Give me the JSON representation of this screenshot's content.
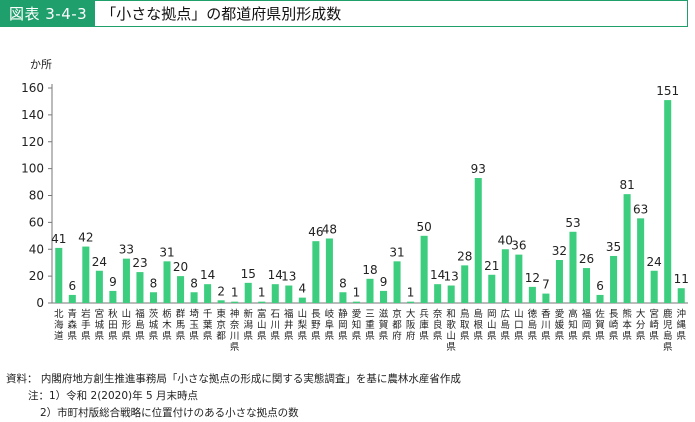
{
  "header": {
    "figure_label": "図表 3-4-3",
    "title": "「小さな拠点」の都道府県別形成数"
  },
  "notes": {
    "source": "資料： 内閣府地方創生推進事務局「小さな拠点の形成に関する実態調査」を基に農林水産省作成",
    "note1": "注：1）令和 2(2020)年 5 月末時点",
    "note2": "2）市町村版総合戦略に位置付けのある小さな拠点の数"
  },
  "chart_data": {
    "type": "bar",
    "ylabel": "か所",
    "ylim": [
      0,
      160
    ],
    "yticks": [
      0,
      20,
      40,
      60,
      80,
      100,
      120,
      140,
      160
    ],
    "grid": false,
    "bar_color": "#3ccd7f",
    "categories": [
      "北海道",
      "青森県",
      "岩手県",
      "宮城県",
      "秋田県",
      "山形県",
      "福島県",
      "茨城県",
      "栃木県",
      "群馬県",
      "埼玉県",
      "千葉県",
      "東京都",
      "神奈川県",
      "新潟県",
      "富山県",
      "石川県",
      "福井県",
      "山梨県",
      "長野県",
      "岐阜県",
      "静岡県",
      "愛知県",
      "三重県",
      "滋賀県",
      "京都府",
      "大阪府",
      "兵庫県",
      "奈良県",
      "和歌山県",
      "鳥取県",
      "島根県",
      "岡山県",
      "広島県",
      "山口県",
      "徳島県",
      "香川県",
      "愛媛県",
      "高知県",
      "福岡県",
      "佐賀県",
      "長崎県",
      "熊本県",
      "大分県",
      "宮崎県",
      "鹿児島県",
      "沖縄県"
    ],
    "values": [
      41,
      6,
      42,
      24,
      9,
      33,
      23,
      8,
      31,
      20,
      8,
      14,
      2,
      1,
      15,
      1,
      14,
      13,
      4,
      46,
      48,
      8,
      1,
      18,
      9,
      31,
      1,
      50,
      14,
      13,
      28,
      93,
      21,
      40,
      36,
      12,
      7,
      32,
      53,
      26,
      6,
      35,
      81,
      63,
      24,
      151,
      11
    ]
  }
}
